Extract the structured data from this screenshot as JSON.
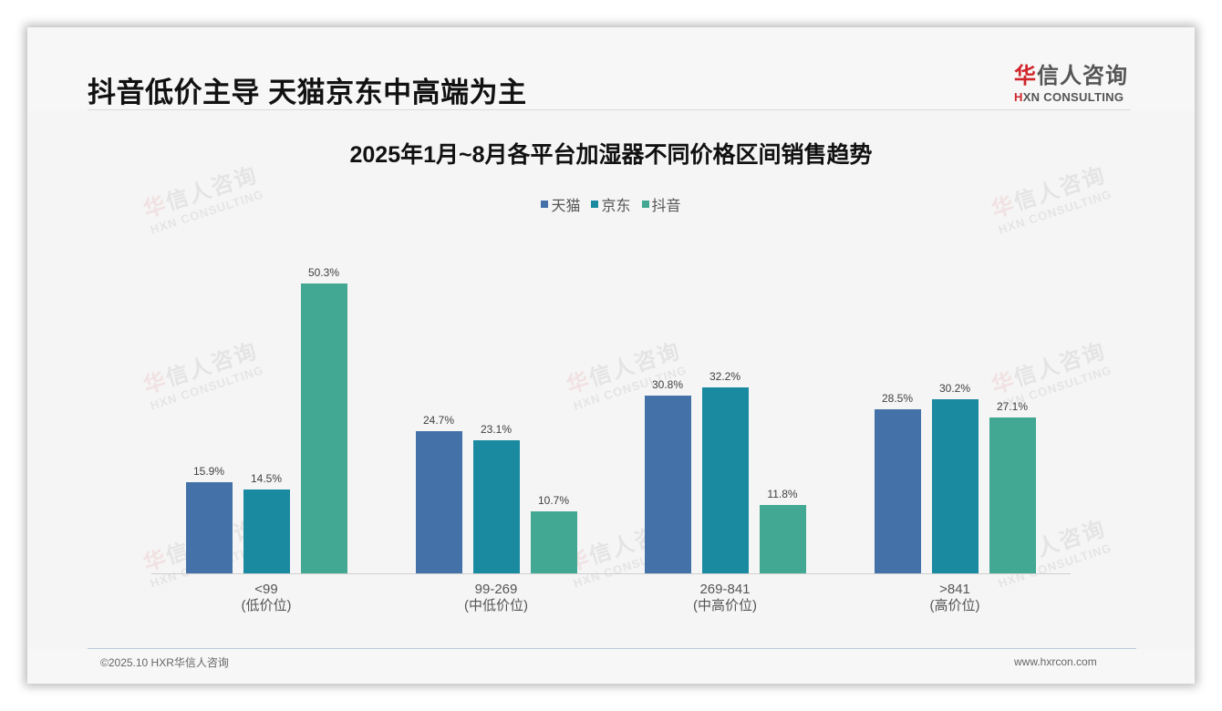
{
  "slide": {
    "title": "抖音低价主导 天猫京东中高端为主",
    "logo": {
      "cn_mark": "华",
      "cn_rest": "信人咨询",
      "en_mark": "H",
      "en_rest": "XN CONSULTING"
    },
    "footer": {
      "copyright": "©2025.10 HXR华信人咨询",
      "website": "www.hxrcon.com"
    },
    "watermark": {
      "cn_mark": "华",
      "cn_rest": "信人咨询",
      "en": "HXN CONSULTING"
    }
  },
  "colors": {
    "tmall": "#4472a8",
    "jd": "#1a8aa0",
    "douyin": "#42a893",
    "logo_red": "#d0252b"
  },
  "chart_data": {
    "type": "bar",
    "title": "2025年1月~8月各平台加湿器不同价格区间销售趋势",
    "xlabel": "",
    "ylabel": "",
    "ylim": [
      0,
      55
    ],
    "grid": false,
    "legend_position": "top",
    "categories": [
      "<99\n(低价位)",
      "99-269\n(中低价位)",
      "269-841\n(中高价位)",
      ">841\n(高价位)"
    ],
    "category_ranges": [
      "<99",
      "99-269",
      "269-841",
      ">841"
    ],
    "category_tiers": [
      "(低价位)",
      "(中低价位)",
      "(中高价位)",
      "(高价位)"
    ],
    "series": [
      {
        "name": "天猫",
        "values": [
          15.9,
          24.7,
          30.8,
          28.5
        ],
        "labels": [
          "15.9%",
          "24.7%",
          "30.8%",
          "28.5%"
        ]
      },
      {
        "name": "京东",
        "values": [
          14.5,
          23.1,
          32.2,
          30.2
        ],
        "labels": [
          "14.5%",
          "23.1%",
          "32.2%",
          "30.2%"
        ]
      },
      {
        "name": "抖音",
        "values": [
          50.3,
          10.7,
          11.8,
          27.1
        ],
        "labels": [
          "50.3%",
          "10.7%",
          "11.8%",
          "27.1%"
        ]
      }
    ],
    "unit": "%"
  }
}
